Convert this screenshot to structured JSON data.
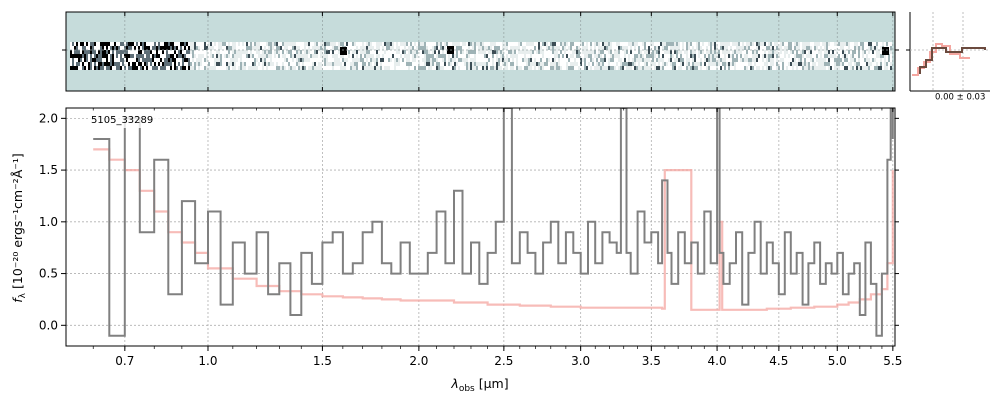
{
  "chart_data": {
    "type": "line",
    "annotation": "5105_33289",
    "xlabel_main": "λ",
    "xlabel_sub": "obs",
    "xlabel_unit": " [μm]",
    "ylabel_main": "f",
    "ylabel_sub": "λ",
    "ylabel_unit": " [10⁻²⁰ ergs⁻¹cm⁻²Å⁻¹]",
    "x_tick_values": [
      0.7,
      1.0,
      1.5,
      2.0,
      2.5,
      3.0,
      3.5,
      4.0,
      4.5,
      5.0,
      5.5
    ],
    "x_tick_labels": [
      "0.7",
      "1.0",
      "1.5",
      "2.0",
      "2.5",
      "3.0",
      "3.5",
      "4.0",
      "4.5",
      "5.0",
      "5.5"
    ],
    "y_tick_values": [
      0.0,
      0.5,
      1.0,
      1.5,
      2.0
    ],
    "y_tick_labels": [
      "0.0",
      "0.5",
      "1.0",
      "1.5",
      "2.0"
    ],
    "ylim": [
      -0.2,
      2.1
    ],
    "xlim": [
      0.52,
      5.52
    ],
    "grid": true,
    "side_panel_label": "0.00 ± 0.03",
    "series": [
      {
        "color": "#808080",
        "x": [
          0.6,
          0.65,
          0.7,
          0.75,
          0.8,
          0.85,
          0.9,
          0.95,
          1.0,
          1.05,
          1.1,
          1.15,
          1.2,
          1.25,
          1.3,
          1.35,
          1.4,
          1.45,
          1.5,
          1.55,
          1.6,
          1.65,
          1.7,
          1.75,
          1.8,
          1.85,
          1.9,
          1.95,
          2.0,
          2.05,
          2.1,
          2.15,
          2.2,
          2.25,
          2.3,
          2.35,
          2.4,
          2.45,
          2.5,
          2.55,
          2.6,
          2.65,
          2.7,
          2.75,
          2.8,
          2.85,
          2.9,
          2.95,
          3.0,
          3.05,
          3.1,
          3.15,
          3.2,
          3.25,
          3.28,
          3.32,
          3.35,
          3.4,
          3.45,
          3.5,
          3.55,
          3.58,
          3.62,
          3.65,
          3.7,
          3.75,
          3.8,
          3.85,
          3.9,
          3.95,
          4.0,
          4.02,
          4.05,
          4.1,
          4.15,
          4.2,
          4.25,
          4.3,
          4.35,
          4.4,
          4.45,
          4.5,
          4.55,
          4.6,
          4.65,
          4.7,
          4.75,
          4.8,
          4.85,
          4.9,
          4.95,
          5.0,
          5.05,
          5.1,
          5.15,
          5.2,
          5.25,
          5.3,
          5.35,
          5.4,
          5.45,
          5.48,
          5.5
        ],
        "y": [
          1.8,
          -0.1,
          2.0,
          0.9,
          1.6,
          0.3,
          1.2,
          0.6,
          1.1,
          0.2,
          0.8,
          0.5,
          0.9,
          0.3,
          0.6,
          0.1,
          0.7,
          0.4,
          0.8,
          0.9,
          0.5,
          0.6,
          0.9,
          1.0,
          0.6,
          0.5,
          0.8,
          0.5,
          0.5,
          0.7,
          1.1,
          0.6,
          1.3,
          0.5,
          0.8,
          0.4,
          0.7,
          1.0,
          2.1,
          0.6,
          0.9,
          0.7,
          0.5,
          0.8,
          1.0,
          0.6,
          0.9,
          0.7,
          0.5,
          1.0,
          0.6,
          0.9,
          0.8,
          0.7,
          2.1,
          0.7,
          0.5,
          1.1,
          0.8,
          0.9,
          0.6,
          1.4,
          0.7,
          0.4,
          0.9,
          0.6,
          0.8,
          0.5,
          1.1,
          0.6,
          2.1,
          0.7,
          0.4,
          0.6,
          0.9,
          0.2,
          0.7,
          1.0,
          0.5,
          0.8,
          0.6,
          0.3,
          0.9,
          0.5,
          0.7,
          0.2,
          0.6,
          0.8,
          0.4,
          0.6,
          0.5,
          0.7,
          0.3,
          0.5,
          0.6,
          0.1,
          0.8,
          0.4,
          -0.1,
          0.5,
          1.6,
          2.1,
          1.8
        ]
      },
      {
        "color": "#f4a6a0",
        "x": [
          0.6,
          0.65,
          0.7,
          0.75,
          0.8,
          0.85,
          0.9,
          0.95,
          1.0,
          1.1,
          1.2,
          1.3,
          1.4,
          1.5,
          1.6,
          1.7,
          1.8,
          1.9,
          2.0,
          2.2,
          2.4,
          2.6,
          2.8,
          3.0,
          3.2,
          3.4,
          3.58,
          3.6,
          3.8,
          4.0,
          4.02,
          4.04,
          4.2,
          4.4,
          4.6,
          4.8,
          5.0,
          5.1,
          5.2,
          5.3,
          5.4,
          5.45,
          5.5
        ],
        "y": [
          1.7,
          1.6,
          1.5,
          1.3,
          1.1,
          0.9,
          0.8,
          0.7,
          0.55,
          0.45,
          0.38,
          0.33,
          0.3,
          0.28,
          0.27,
          0.26,
          0.25,
          0.24,
          0.24,
          0.22,
          0.2,
          0.19,
          0.18,
          0.17,
          0.17,
          0.17,
          0.16,
          1.5,
          0.15,
          0.15,
          1.0,
          0.15,
          0.15,
          0.16,
          0.17,
          0.18,
          0.2,
          0.22,
          0.25,
          0.3,
          0.35,
          0.6,
          1.5
        ]
      }
    ]
  }
}
